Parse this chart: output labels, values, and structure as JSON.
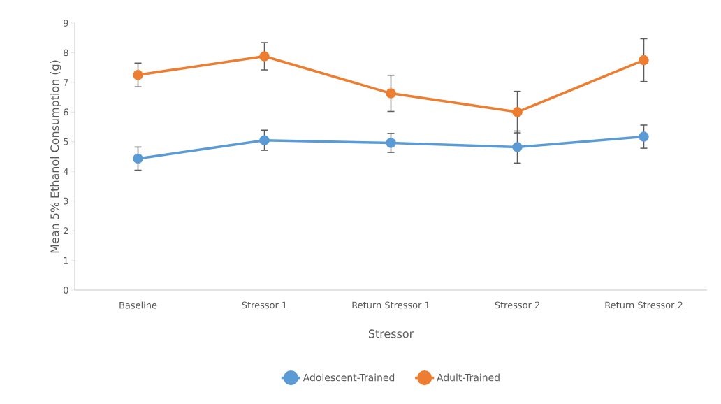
{
  "chart_data": {
    "type": "line",
    "xlabel": "Stressor",
    "ylabel": "Mean 5% Ethanol Consumption (g)",
    "categories": [
      "Baseline",
      "Stressor 1",
      "Return Stressor 1",
      "Stressor 2",
      "Return Stressor 2"
    ],
    "series": [
      {
        "name": "Adolescent-Trained",
        "color": "#5b9bd5",
        "values": [
          4.43,
          5.05,
          4.96,
          4.82,
          5.17
        ],
        "errors": [
          0.39,
          0.34,
          0.32,
          0.54,
          0.39
        ]
      },
      {
        "name": "Adult-Trained",
        "color": "#ed7d31",
        "values": [
          7.25,
          7.88,
          6.63,
          6.0,
          7.75
        ],
        "errors": [
          0.4,
          0.46,
          0.61,
          0.7,
          0.72
        ]
      }
    ],
    "ylim": [
      0,
      9
    ],
    "yticks": [
      0,
      1,
      2,
      3,
      4,
      5,
      6,
      7,
      8,
      9
    ],
    "grid": false,
    "legend": "bottom",
    "marker": "circle",
    "line_style": "solid"
  }
}
